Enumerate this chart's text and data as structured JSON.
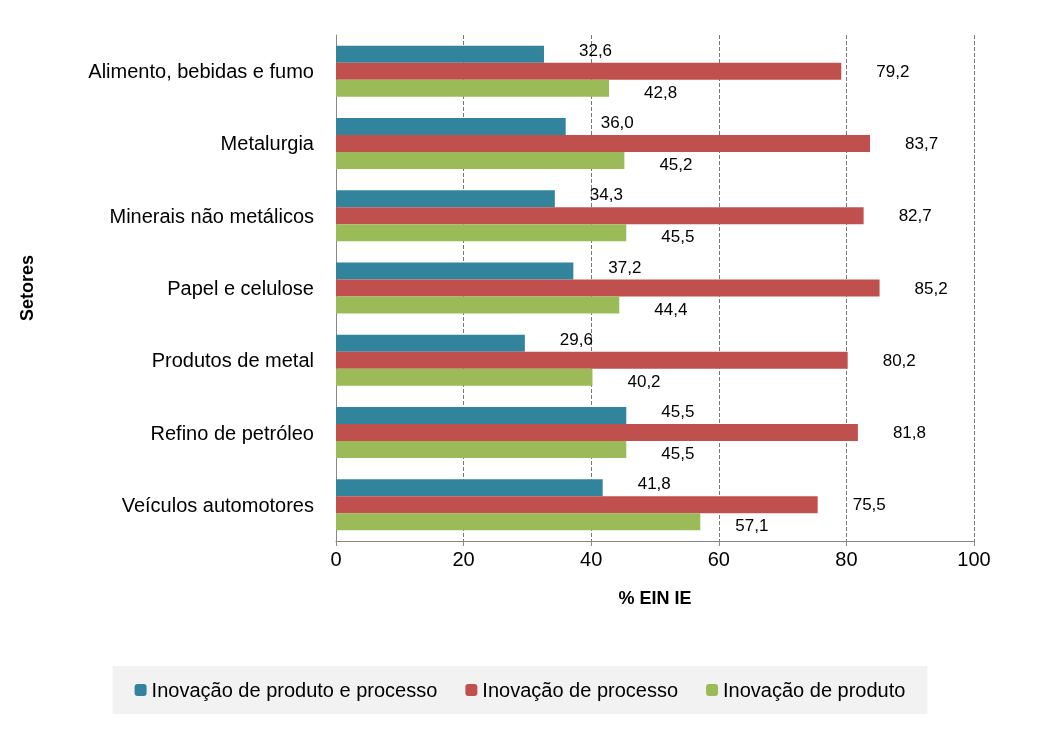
{
  "chart_data": {
    "type": "bar",
    "orientation": "horizontal",
    "xlabel": "% EIN IE",
    "ylabel": "Setores",
    "categories": [
      "Alimento, bebidas e fumo",
      "Metalurgia",
      "Minerais não metálicos",
      "Papel e celulose",
      "Produtos de metal",
      "Refino de petróleo",
      "Veículos automotores"
    ],
    "series": [
      {
        "name": "Inovação de produto e processo",
        "color": "#31849b",
        "values": [
          32.6,
          36.0,
          34.3,
          37.2,
          29.6,
          45.5,
          41.8
        ],
        "value_labels": [
          "32,6",
          "36,0",
          "34,3",
          "37,2",
          "29,6",
          "45,5",
          "41,8"
        ]
      },
      {
        "name": "Inovação de processo",
        "color": "#c0504d",
        "values": [
          79.2,
          83.7,
          82.7,
          85.2,
          80.2,
          81.8,
          75.5
        ],
        "value_labels": [
          "79,2",
          "83,7",
          "82,7",
          "85,2",
          "80,2",
          "81,8",
          "75,5"
        ]
      },
      {
        "name": "Inovação de produto",
        "color": "#9bbb59",
        "values": [
          42.8,
          45.2,
          45.5,
          44.4,
          40.2,
          45.5,
          57.1
        ],
        "value_labels": [
          "42,8",
          "45,2",
          "45,5",
          "44,4",
          "40,2",
          "45,5",
          "57,1"
        ]
      }
    ],
    "xlim": [
      0,
      100
    ],
    "xticks": [
      0,
      20,
      40,
      60,
      80,
      100
    ],
    "grid": "x",
    "legend": "bottom"
  }
}
